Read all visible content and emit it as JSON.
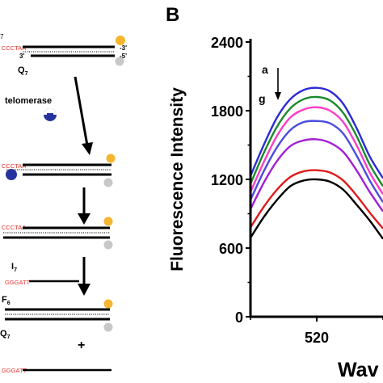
{
  "panel_letter": "B",
  "scheme": {
    "top_seq": "CCCTAA",
    "end_3": "-3'",
    "end_5": "-5'",
    "strand_3prime": "3'",
    "quencher_top": "Q",
    "quencher_top_sub": "7",
    "enzyme_label": "telomerase",
    "seq_row2": "CCCTAA",
    "seq_row3": "CCCTAA",
    "inhibitor": "I",
    "inhibitor_sub": "7",
    "inhibitor_seq": "GGGATT",
    "frag_top": "F",
    "frag_top_sub": "6",
    "quencher_bottom": "Q",
    "quencher_bottom_sub": "7",
    "plus": "+",
    "released_seq": "GGGATT",
    "colors": {
      "fluorophore": "#f5b52e",
      "quencher": "#c8c8c8",
      "sequence": "#e8302a",
      "enzyme": "#26339e"
    }
  },
  "chart_data": {
    "type": "line",
    "ylabel": "Fluorescence Intensity",
    "xlabel": "Wav",
    "yticks": [
      "0",
      "600",
      "1200",
      "1800",
      "2400"
    ],
    "xticks": [
      "520"
    ],
    "ylim": [
      0,
      2400
    ],
    "xlim": [
      505,
      535
    ],
    "annotation_top": "a",
    "annotation_bottom": "g",
    "x": [
      505,
      508,
      511,
      514,
      517,
      520,
      523,
      526,
      529,
      532,
      535
    ],
    "series": [
      {
        "color": "#2b2bd6",
        "values": [
          1230,
          1500,
          1740,
          1900,
          1980,
          2000,
          1970,
          1860,
          1650,
          1400,
          1210
        ]
      },
      {
        "color": "#1a8a2a",
        "values": [
          1160,
          1430,
          1660,
          1820,
          1900,
          1920,
          1890,
          1780,
          1580,
          1330,
          1140
        ]
      },
      {
        "color": "#ff3cc8",
        "values": [
          1090,
          1350,
          1580,
          1740,
          1810,
          1830,
          1800,
          1700,
          1500,
          1260,
          1070
        ]
      },
      {
        "color": "#4b4be0",
        "values": [
          1020,
          1270,
          1480,
          1630,
          1700,
          1710,
          1690,
          1600,
          1410,
          1190,
          1000
        ]
      },
      {
        "color": "#a21fd6",
        "values": [
          940,
          1170,
          1360,
          1490,
          1540,
          1550,
          1520,
          1440,
          1280,
          1090,
          920
        ]
      },
      {
        "color": "#e11a1a",
        "values": [
          780,
          960,
          1110,
          1220,
          1270,
          1280,
          1260,
          1190,
          1060,
          910,
          770
        ]
      },
      {
        "color": "#000000",
        "values": [
          690,
          870,
          1020,
          1140,
          1190,
          1200,
          1180,
          1110,
          980,
          840,
          680
        ]
      }
    ]
  }
}
